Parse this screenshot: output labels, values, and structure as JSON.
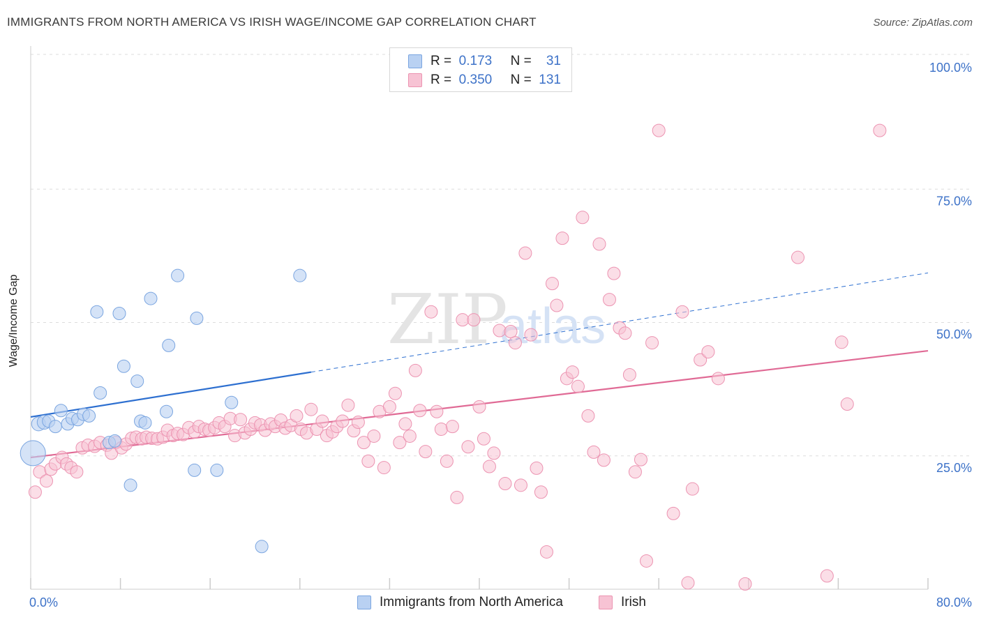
{
  "title": "IMMIGRANTS FROM NORTH AMERICA VS IRISH WAGE/INCOME GAP CORRELATION CHART",
  "source": "Source: ZipAtlas.com",
  "watermark": {
    "zip": "ZIP",
    "atlas": "atlas"
  },
  "colors": {
    "blue_fill": "#b9d1f2",
    "blue_stroke": "#7aa5e0",
    "blue_line": "#2d6fd0",
    "pink_fill": "#f7c3d4",
    "pink_stroke": "#ec93b1",
    "pink_line": "#e06a95",
    "tick_text": "#3d72c8",
    "grid": "#dddddd"
  },
  "legend": {
    "rows": [
      {
        "r_label": "R =",
        "r_value": "0.173",
        "n_label": "N =",
        "n_value": "31",
        "color": "#b9d1f2",
        "stroke": "#7aa5e0"
      },
      {
        "r_label": "R =",
        "r_value": "0.350",
        "n_label": "N =",
        "n_value": "131",
        "color": "#f7c3d4",
        "stroke": "#ec93b1"
      }
    ]
  },
  "bottom_legend": [
    {
      "label": "Immigrants from North America",
      "color": "#b9d1f2",
      "stroke": "#7aa5e0"
    },
    {
      "label": "Irish",
      "color": "#f7c3d4",
      "stroke": "#ec93b1"
    }
  ],
  "chart_data": {
    "type": "scatter",
    "title": "IMMIGRANTS FROM NORTH AMERICA VS IRISH WAGE/INCOME GAP CORRELATION CHART",
    "xlabel": "",
    "ylabel": "Wage/Income Gap",
    "xlim": [
      0,
      80
    ],
    "ylim": [
      0,
      100
    ],
    "x_tick_labels": [
      {
        "value": 0,
        "label": "0.0%"
      },
      {
        "value": 80,
        "label": "80.0%"
      }
    ],
    "y_tick_labels": [
      {
        "value": 25,
        "label": "25.0%"
      },
      {
        "value": 50,
        "label": "50.0%"
      },
      {
        "value": 75,
        "label": "75.0%"
      },
      {
        "value": 100,
        "label": "100.0%"
      }
    ],
    "grid": true,
    "legend_position": "top-center",
    "series": [
      {
        "name": "Immigrants from North America",
        "color": "#b9d1f2",
        "trend": {
          "x0": 0,
          "y0": 32.3,
          "x1": 25,
          "y1": 40.7,
          "dash_to": 80,
          "dash_y": 59.3
        },
        "points": [
          [
            0.2,
            25.5,
            18
          ],
          [
            0.7,
            31.0,
            10
          ],
          [
            1.2,
            31.3,
            10
          ],
          [
            1.6,
            31.5,
            9
          ],
          [
            2.2,
            30.5,
            9
          ],
          [
            2.7,
            33.5,
            9
          ],
          [
            3.3,
            31.0,
            9
          ],
          [
            3.7,
            32.0,
            9
          ],
          [
            4.2,
            31.8,
            9
          ],
          [
            4.7,
            32.8,
            9
          ],
          [
            5.2,
            32.5,
            9
          ],
          [
            5.9,
            52.0,
            9
          ],
          [
            6.2,
            36.8,
            9
          ],
          [
            7.0,
            27.5,
            9
          ],
          [
            7.5,
            27.8,
            9
          ],
          [
            7.9,
            51.7,
            9
          ],
          [
            8.3,
            41.8,
            9
          ],
          [
            8.9,
            19.5,
            9
          ],
          [
            9.5,
            39.0,
            9
          ],
          [
            9.8,
            31.5,
            9
          ],
          [
            10.2,
            31.2,
            9
          ],
          [
            10.7,
            54.5,
            9
          ],
          [
            12.1,
            33.3,
            9
          ],
          [
            12.3,
            45.7,
            9
          ],
          [
            13.1,
            58.8,
            9
          ],
          [
            14.6,
            22.3,
            9
          ],
          [
            14.8,
            50.8,
            9
          ],
          [
            16.6,
            22.3,
            9
          ],
          [
            17.9,
            35.0,
            9
          ],
          [
            20.6,
            8.0,
            9
          ],
          [
            24.0,
            58.8,
            9
          ]
        ]
      },
      {
        "name": "Irish",
        "color": "#f7c3d4",
        "trend": {
          "x0": 0,
          "y0": 24.7,
          "x1": 80,
          "y1": 44.7
        },
        "points": [
          [
            0.4,
            18.2
          ],
          [
            0.8,
            22.0
          ],
          [
            1.4,
            20.3
          ],
          [
            1.8,
            22.5
          ],
          [
            2.2,
            23.5
          ],
          [
            2.8,
            24.7
          ],
          [
            3.2,
            23.5
          ],
          [
            3.6,
            22.8
          ],
          [
            4.1,
            22.0
          ],
          [
            4.6,
            26.5
          ],
          [
            5.1,
            27.0
          ],
          [
            5.7,
            26.8
          ],
          [
            6.2,
            27.5
          ],
          [
            6.8,
            27.0
          ],
          [
            7.2,
            25.5
          ],
          [
            7.6,
            27.5
          ],
          [
            8.1,
            26.5
          ],
          [
            8.5,
            27.2
          ],
          [
            9.0,
            28.3
          ],
          [
            9.4,
            28.5
          ],
          [
            9.9,
            28.2
          ],
          [
            10.3,
            28.5
          ],
          [
            10.8,
            28.3
          ],
          [
            11.3,
            28.2
          ],
          [
            11.8,
            28.5
          ],
          [
            12.2,
            29.8
          ],
          [
            12.7,
            28.8
          ],
          [
            13.1,
            29.2
          ],
          [
            13.6,
            29.0
          ],
          [
            14.1,
            30.3
          ],
          [
            14.6,
            29.5
          ],
          [
            15.0,
            30.5
          ],
          [
            15.5,
            30.0
          ],
          [
            15.9,
            29.8
          ],
          [
            16.4,
            30.3
          ],
          [
            16.8,
            31.2
          ],
          [
            17.3,
            30.5
          ],
          [
            17.8,
            32.0
          ],
          [
            18.2,
            28.8
          ],
          [
            18.7,
            31.8
          ],
          [
            19.1,
            29.3
          ],
          [
            19.6,
            30.0
          ],
          [
            20.0,
            31.2
          ],
          [
            20.5,
            30.8
          ],
          [
            20.9,
            29.8
          ],
          [
            21.4,
            31.0
          ],
          [
            21.8,
            30.5
          ],
          [
            22.3,
            31.7
          ],
          [
            22.7,
            30.2
          ],
          [
            23.2,
            30.7
          ],
          [
            23.7,
            32.5
          ],
          [
            24.1,
            30.0
          ],
          [
            24.6,
            29.3
          ],
          [
            25.0,
            33.7
          ],
          [
            25.5,
            30.0
          ],
          [
            26.0,
            31.5
          ],
          [
            26.4,
            28.8
          ],
          [
            26.9,
            29.5
          ],
          [
            27.3,
            30.5
          ],
          [
            27.8,
            31.5
          ],
          [
            28.3,
            34.5
          ],
          [
            28.8,
            29.7
          ],
          [
            29.2,
            31.3
          ],
          [
            29.7,
            27.5
          ],
          [
            30.1,
            24.0
          ],
          [
            30.6,
            28.7
          ],
          [
            31.1,
            33.3
          ],
          [
            31.5,
            22.8
          ],
          [
            32.0,
            34.2
          ],
          [
            32.5,
            36.7
          ],
          [
            32.9,
            27.5
          ],
          [
            33.4,
            31.0
          ],
          [
            33.8,
            28.7
          ],
          [
            34.3,
            41.0
          ],
          [
            34.7,
            33.5
          ],
          [
            35.2,
            25.8
          ],
          [
            35.7,
            52.0
          ],
          [
            36.2,
            33.3
          ],
          [
            36.6,
            30.0
          ],
          [
            37.1,
            24.0
          ],
          [
            37.6,
            30.5
          ],
          [
            38.0,
            17.2
          ],
          [
            38.5,
            50.5
          ],
          [
            39.0,
            26.7
          ],
          [
            39.5,
            50.5
          ],
          [
            40.0,
            34.2
          ],
          [
            40.4,
            28.2
          ],
          [
            40.9,
            23.0
          ],
          [
            41.3,
            25.5
          ],
          [
            41.8,
            48.5
          ],
          [
            42.3,
            19.8
          ],
          [
            42.8,
            48.3
          ],
          [
            43.2,
            46.2
          ],
          [
            43.7,
            19.5
          ],
          [
            44.1,
            63.0
          ],
          [
            44.6,
            47.7
          ],
          [
            45.1,
            22.7
          ],
          [
            45.5,
            18.2
          ],
          [
            46.0,
            7.0
          ],
          [
            46.5,
            57.3
          ],
          [
            46.9,
            53.2
          ],
          [
            47.4,
            65.8
          ],
          [
            47.8,
            39.5
          ],
          [
            48.3,
            40.7
          ],
          [
            48.8,
            38.0
          ],
          [
            49.2,
            69.7
          ],
          [
            49.7,
            32.5
          ],
          [
            50.2,
            25.7
          ],
          [
            50.7,
            64.7
          ],
          [
            51.1,
            24.2
          ],
          [
            51.6,
            54.3
          ],
          [
            52.0,
            59.2
          ],
          [
            52.5,
            49.0
          ],
          [
            53.0,
            48.0
          ],
          [
            53.4,
            40.2
          ],
          [
            53.9,
            22.0
          ],
          [
            54.4,
            24.3
          ],
          [
            54.9,
            5.3
          ],
          [
            55.4,
            46.2
          ],
          [
            56.0,
            86.0
          ],
          [
            57.3,
            14.2
          ],
          [
            58.1,
            52.0
          ],
          [
            58.6,
            1.2
          ],
          [
            59.0,
            18.8
          ],
          [
            59.7,
            43.0
          ],
          [
            60.4,
            44.5
          ],
          [
            61.3,
            39.5
          ],
          [
            63.7,
            1.0
          ],
          [
            68.4,
            62.2
          ],
          [
            71.0,
            2.5
          ],
          [
            72.3,
            46.3
          ],
          [
            72.8,
            34.7
          ],
          [
            75.7,
            86.0
          ]
        ]
      }
    ]
  }
}
